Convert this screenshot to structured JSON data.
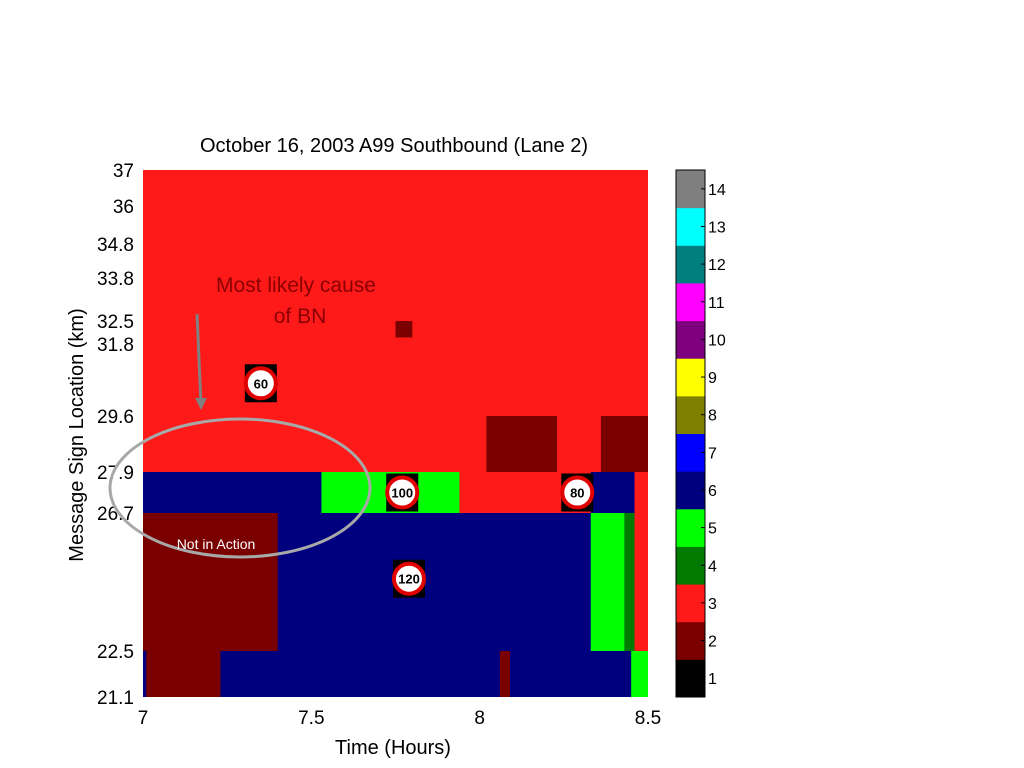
{
  "chart_data": {
    "type": "heatmap",
    "title": "October 16, 2003 A99 Southbound (Lane 2)",
    "xlabel": "Time (Hours)",
    "ylabel": "Message Sign Location (km)",
    "xlim": [
      7,
      8.5
    ],
    "x_ticks": [
      "7",
      "7.5",
      "8",
      "8.5"
    ],
    "y_ticks": [
      "21.1",
      "22.5",
      "26.7",
      "27.9",
      "29.6",
      "31.8",
      "32.5",
      "33.8",
      "34.8",
      "36",
      "37"
    ],
    "background_value": 3,
    "cells": [
      {
        "x": [
          7.0,
          8.5
        ],
        "y": [
          21.1,
          27.9
        ],
        "value": 6
      },
      {
        "x": [
          7.0,
          7.4
        ],
        "y": [
          22.5,
          26.7
        ],
        "value": 2
      },
      {
        "x": [
          7.01,
          7.23
        ],
        "y": [
          21.1,
          22.5
        ],
        "value": 2
      },
      {
        "x": [
          7.53,
          7.94
        ],
        "y": [
          26.7,
          27.9
        ],
        "value": 5
      },
      {
        "x": [
          7.94,
          8.33
        ],
        "y": [
          26.7,
          27.9
        ],
        "value": 3
      },
      {
        "x": [
          8.06,
          8.09
        ],
        "y": [
          21.1,
          22.5
        ],
        "value": 2
      },
      {
        "x": [
          8.33,
          8.43
        ],
        "y": [
          22.5,
          26.7
        ],
        "value": 5
      },
      {
        "x": [
          8.43,
          8.46
        ],
        "y": [
          22.5,
          26.7
        ],
        "value": 4
      },
      {
        "x": [
          8.46,
          8.5
        ],
        "y": [
          22.5,
          27.9
        ],
        "value": 3
      },
      {
        "x": [
          8.45,
          8.5
        ],
        "y": [
          21.1,
          22.5
        ],
        "value": 5
      },
      {
        "x": [
          8.02,
          8.23
        ],
        "y": [
          27.9,
          29.6
        ],
        "value": 2
      },
      {
        "x": [
          8.36,
          8.5
        ],
        "y": [
          27.9,
          29.6
        ],
        "value": 2
      },
      {
        "x": [
          7.75,
          7.8
        ],
        "y": [
          32.0,
          32.5
        ],
        "value": 2
      }
    ],
    "colorbar": {
      "labels": [
        "1",
        "2",
        "3",
        "4",
        "5",
        "6",
        "7",
        "8",
        "9",
        "10",
        "11",
        "12",
        "13",
        "14"
      ],
      "colors": [
        "#000000",
        "#7a0000",
        "#ff1a1a",
        "#007a00",
        "#00ff00",
        "#00007f",
        "#0000ff",
        "#7f7f00",
        "#ffff00",
        "#7f007f",
        "#ff00ff",
        "#007f7f",
        "#00ffff",
        "#7f7f7f"
      ]
    },
    "speed_signs": [
      {
        "label": "60",
        "x": 7.35,
        "y": 30.6
      },
      {
        "label": "100",
        "x": 7.77,
        "y": 27.3
      },
      {
        "label": "80",
        "x": 8.29,
        "y": 27.3
      },
      {
        "label": "120",
        "x": 7.79,
        "y": 24.7
      }
    ],
    "annotations": {
      "cause_line1": "Most likely cause",
      "cause_line2": "of BN",
      "status": "Not in Action"
    }
  }
}
